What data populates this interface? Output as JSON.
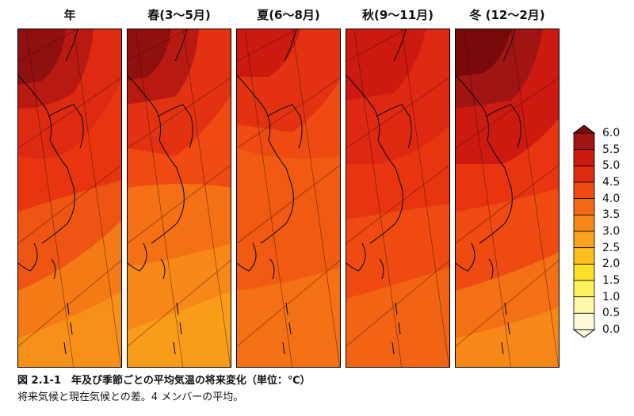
{
  "panels": [
    {
      "key": "annual",
      "title": "年"
    },
    {
      "key": "spring",
      "title": "春(3～5月)"
    },
    {
      "key": "summer",
      "title": "夏(6～8月)"
    },
    {
      "key": "autumn",
      "title": "秋(9～11月)"
    },
    {
      "key": "winter",
      "title": "冬 (12～2月)"
    }
  ],
  "legend": {
    "ticks": [
      "6.0",
      "5.5",
      "5.0",
      "4.5",
      "4.0",
      "3.5",
      "3.0",
      "2.5",
      "2.0",
      "1.5",
      "1.0",
      "0.5",
      "0.0"
    ],
    "colors": [
      "#7a0a0a",
      "#a01414",
      "#cc1a10",
      "#e02a10",
      "#ee4a12",
      "#f46a14",
      "#f78818",
      "#f9a21c",
      "#fbc020",
      "#fbdf28",
      "#fff060",
      "#fff8a8",
      "#fffbd8"
    ]
  },
  "caption": "図 2.1-1　年及び季節ごとの平均気温の将来変化（単位：℃）",
  "note": "将来気候と現在気候との差。4 メンバーの平均。"
}
